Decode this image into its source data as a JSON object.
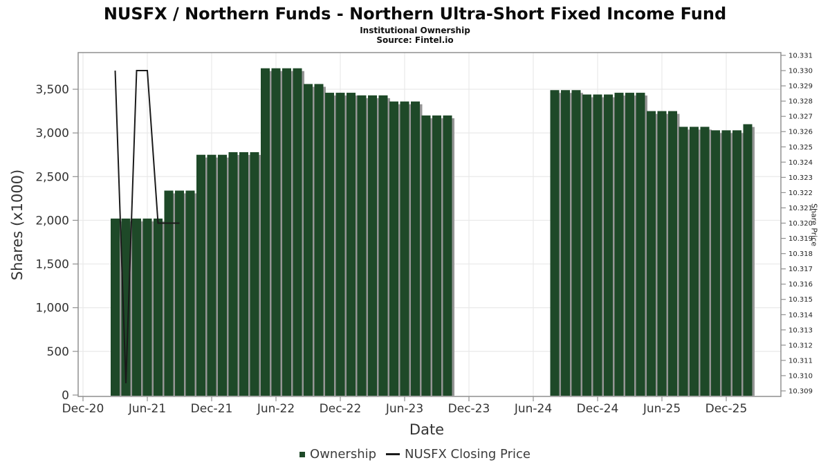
{
  "chart_data": {
    "type": "bar",
    "title": "NUSFX / Northern Funds - Northern Ultra-Short Fixed Income Fund",
    "subtitle": "Institutional Ownership",
    "source": "Source: Fintel.io",
    "xlabel": "Date",
    "ylabel_left": "Shares (x1000)",
    "ylabel_right": "Share Price",
    "legend": [
      {
        "label": "Ownership",
        "type": "bar"
      },
      {
        "label": "NUSFX Closing Price",
        "type": "line"
      }
    ],
    "colors": {
      "bar": "#1e4928",
      "bar_shadow": "#969696",
      "line": "#1a1a1a",
      "grid": "#e9e9e9",
      "axis": "#8f8f8f",
      "text": "#333333"
    },
    "x_axis": {
      "ticks": [
        "Dec-20",
        "Jun-21",
        "Dec-21",
        "Jun-22",
        "Dec-22",
        "Jun-23",
        "Dec-23",
        "Jun-24",
        "Dec-24",
        "Jun-25",
        "Dec-25"
      ]
    },
    "y_axis_left": {
      "ylim": [
        0,
        3920
      ],
      "grid": true,
      "ticks": [
        {
          "value": 0,
          "label": "0"
        },
        {
          "value": 500,
          "label": "500"
        },
        {
          "value": 1000,
          "label": "1,000"
        },
        {
          "value": 1500,
          "label": "1,500"
        },
        {
          "value": 2000,
          "label": "2,000"
        },
        {
          "value": 2500,
          "label": "2,500"
        },
        {
          "value": 3000,
          "label": "3,000"
        },
        {
          "value": 3500,
          "label": "3,500"
        }
      ]
    },
    "y_axis_right": {
      "ylim": [
        10.309,
        10.331
      ],
      "grid": false,
      "tick_labels": [
        "10.309",
        "10.310",
        "10.311",
        "10.312",
        "10.313",
        "10.314",
        "10.315",
        "10.316",
        "10.317",
        "10.318",
        "10.319",
        "10.320",
        "10.321",
        "10.322",
        "10.323",
        "10.324",
        "10.325",
        "10.326",
        "10.327",
        "10.328",
        "10.329",
        "10.330",
        "10.331"
      ]
    },
    "ownership_series": [
      {
        "date": "Mar-21",
        "shares_k": 2020
      },
      {
        "date": "Apr-21",
        "shares_k": 2020
      },
      {
        "date": "May-21",
        "shares_k": 2020
      },
      {
        "date": "Jun-21",
        "shares_k": 2020
      },
      {
        "date": "Jul-21",
        "shares_k": 2020
      },
      {
        "date": "Aug-21",
        "shares_k": 2340
      },
      {
        "date": "Sep-21",
        "shares_k": 2340
      },
      {
        "date": "Oct-21",
        "shares_k": 2340
      },
      {
        "date": "Nov-21",
        "shares_k": 2750
      },
      {
        "date": "Dec-21",
        "shares_k": 2750
      },
      {
        "date": "Jan-22",
        "shares_k": 2750
      },
      {
        "date": "Feb-22",
        "shares_k": 2780
      },
      {
        "date": "Mar-22",
        "shares_k": 2780
      },
      {
        "date": "Apr-22",
        "shares_k": 2780
      },
      {
        "date": "May-22",
        "shares_k": 3740
      },
      {
        "date": "Jun-22",
        "shares_k": 3740
      },
      {
        "date": "Jul-22",
        "shares_k": 3740
      },
      {
        "date": "Aug-22",
        "shares_k": 3740
      },
      {
        "date": "Sep-22",
        "shares_k": 3560
      },
      {
        "date": "Oct-22",
        "shares_k": 3560
      },
      {
        "date": "Nov-22",
        "shares_k": 3460
      },
      {
        "date": "Dec-22",
        "shares_k": 3460
      },
      {
        "date": "Jan-23",
        "shares_k": 3460
      },
      {
        "date": "Feb-23",
        "shares_k": 3430
      },
      {
        "date": "Mar-23",
        "shares_k": 3430
      },
      {
        "date": "Apr-23",
        "shares_k": 3430
      },
      {
        "date": "May-23",
        "shares_k": 3360
      },
      {
        "date": "Jun-23",
        "shares_k": 3360
      },
      {
        "date": "Jul-23",
        "shares_k": 3360
      },
      {
        "date": "Aug-23",
        "shares_k": 3200
      },
      {
        "date": "Sep-23",
        "shares_k": 3200
      },
      {
        "date": "Oct-23",
        "shares_k": 3200
      },
      {
        "date": "Aug-24",
        "shares_k": 3490
      },
      {
        "date": "Sep-24",
        "shares_k": 3490
      },
      {
        "date": "Oct-24",
        "shares_k": 3490
      },
      {
        "date": "Nov-24",
        "shares_k": 3440
      },
      {
        "date": "Dec-24",
        "shares_k": 3440
      },
      {
        "date": "Jan-25",
        "shares_k": 3440
      },
      {
        "date": "Feb-25",
        "shares_k": 3460
      },
      {
        "date": "Mar-25",
        "shares_k": 3460
      },
      {
        "date": "Apr-25",
        "shares_k": 3460
      },
      {
        "date": "May-25",
        "shares_k": 3250
      },
      {
        "date": "Jun-25",
        "shares_k": 3250
      },
      {
        "date": "Jul-25",
        "shares_k": 3250
      },
      {
        "date": "Aug-25",
        "shares_k": 3070
      },
      {
        "date": "Sep-25",
        "shares_k": 3070
      },
      {
        "date": "Oct-25",
        "shares_k": 3070
      },
      {
        "date": "Nov-25",
        "shares_k": 3030
      },
      {
        "date": "Dec-25",
        "shares_k": 3030
      },
      {
        "date": "Jan-26",
        "shares_k": 3030
      },
      {
        "date": "Feb-26",
        "shares_k": 3100
      }
    ],
    "closing_price_series": [
      {
        "date": "Mar-21",
        "price": 10.33
      },
      {
        "date": "Apr-21",
        "price": 10.3095
      },
      {
        "date": "May-21",
        "price": 10.33
      },
      {
        "date": "Jun-21",
        "price": 10.33
      },
      {
        "date": "Jul-21",
        "price": 10.32
      },
      {
        "date": "Aug-21",
        "price": 10.32
      },
      {
        "date": "Sep-21",
        "price": 10.32
      }
    ]
  }
}
